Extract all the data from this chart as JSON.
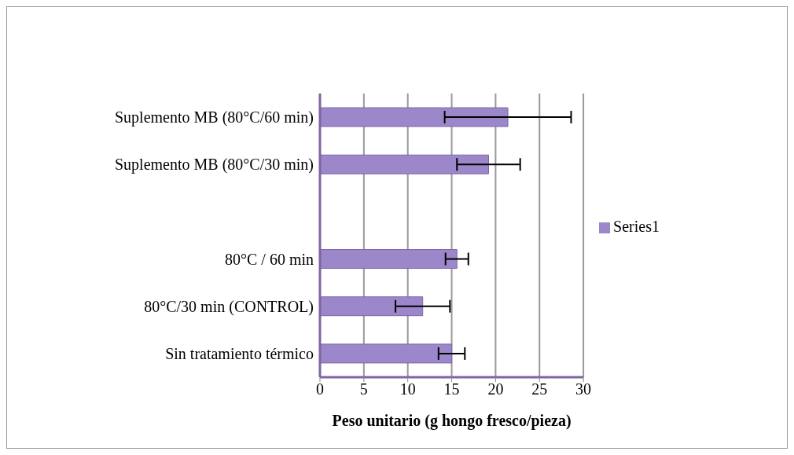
{
  "chart_data": {
    "type": "bar",
    "orientation": "horizontal",
    "xlabel": "Peso unitario (g hongo fresco/pieza)",
    "categories": [
      "Suplemento MB (80°C/60 min)",
      "Suplemento MB (80°C/30 min)",
      null,
      "80°C / 60 min",
      "80°C/30 min (CONTROL)",
      "Sin tratamiento térmico"
    ],
    "series": [
      {
        "name": "Series1",
        "color": "#9b87c9",
        "values": [
          21.4,
          19.2,
          null,
          15.6,
          11.7,
          15.0
        ],
        "errors": [
          7.2,
          3.6,
          null,
          1.3,
          3.1,
          1.5
        ]
      }
    ],
    "xlim": [
      0,
      30
    ],
    "xticks": [
      0,
      5,
      10,
      15,
      20,
      25,
      30
    ],
    "grid": "x",
    "legend": "right"
  }
}
